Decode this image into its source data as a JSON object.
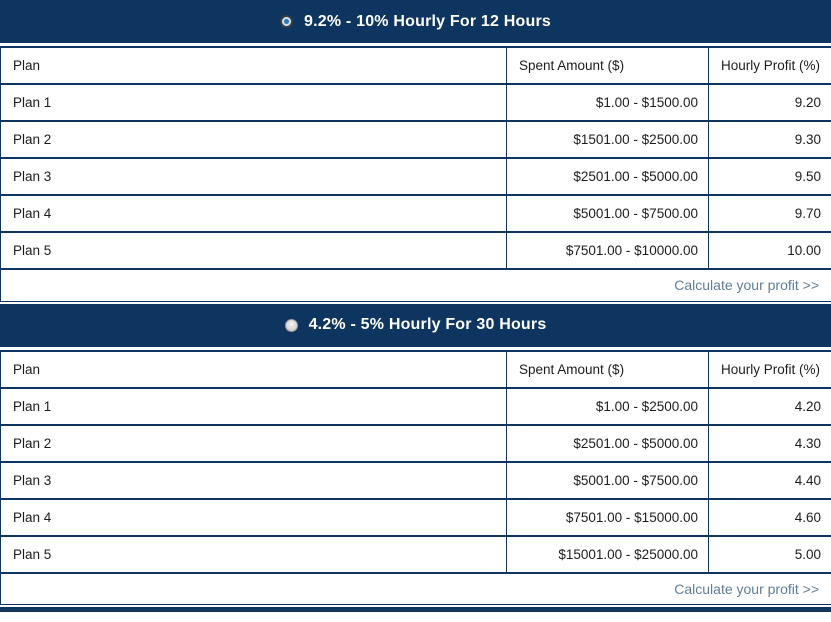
{
  "colors": {
    "header_navy": "#0d3560",
    "border_navy": "#0d3560",
    "title_text": "#ffffff",
    "cell_text": "#1c1c1c",
    "link_text": "#5f7d9a",
    "radio_dot_blue": "#2f76b5"
  },
  "sections": [
    {
      "title": "9.2% - 10% Hourly For 12 Hours",
      "radio_selected": true,
      "columns": {
        "plan": "Plan",
        "spent": "Spent Amount ($)",
        "profit": "Hourly Profit (%)"
      },
      "rows": [
        {
          "plan": "Plan 1",
          "spent": "$1.00 - $1500.00",
          "profit": "9.20"
        },
        {
          "plan": "Plan 2",
          "spent": "$1501.00 - $2500.00",
          "profit": "9.30"
        },
        {
          "plan": "Plan 3",
          "spent": "$2501.00 - $5000.00",
          "profit": "9.50"
        },
        {
          "plan": "Plan 4",
          "spent": "$5001.00 - $7500.00",
          "profit": "9.70"
        },
        {
          "plan": "Plan 5",
          "spent": "$7501.00 - $10000.00",
          "profit": "10.00"
        }
      ],
      "footer_link": "Calculate your profit >>"
    },
    {
      "title": "4.2% - 5% Hourly For 30 Hours",
      "radio_selected": false,
      "columns": {
        "plan": "Plan",
        "spent": "Spent Amount ($)",
        "profit": "Hourly Profit (%)"
      },
      "rows": [
        {
          "plan": "Plan 1",
          "spent": "$1.00 - $2500.00",
          "profit": "4.20"
        },
        {
          "plan": "Plan 2",
          "spent": "$2501.00 - $5000.00",
          "profit": "4.30"
        },
        {
          "plan": "Plan 3",
          "spent": "$5001.00 - $7500.00",
          "profit": "4.40"
        },
        {
          "plan": "Plan 4",
          "spent": "$7501.00 - $15000.00",
          "profit": "4.60"
        },
        {
          "plan": "Plan 5",
          "spent": "$15001.00 - $25000.00",
          "profit": "5.00"
        }
      ],
      "footer_link": "Calculate your profit >>"
    }
  ]
}
